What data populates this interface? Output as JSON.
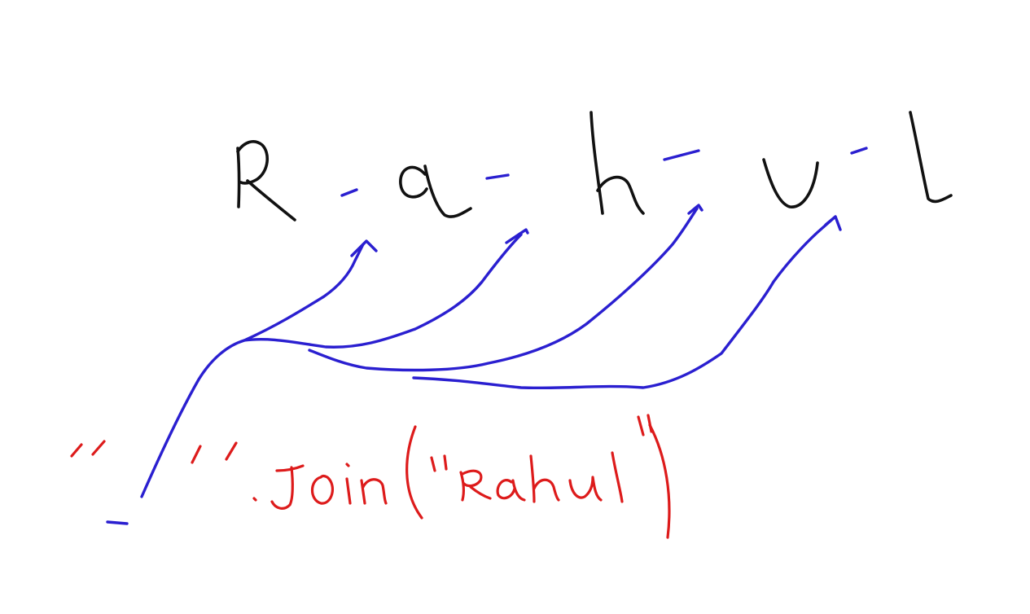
{
  "whiteboard": {
    "word_letters": [
      "R",
      "a",
      "h",
      "u",
      "l"
    ],
    "separator": "-",
    "code_expression": "\"-\".join(\"Rahul\")"
  },
  "colors": {
    "letters": "#111111",
    "separators_and_arrows": "#2a1fd0",
    "code": "#dd1b1b",
    "background": "#ffffff"
  }
}
